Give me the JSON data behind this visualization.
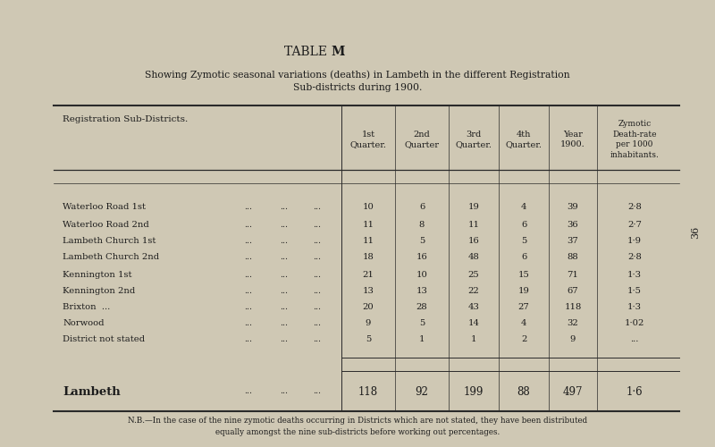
{
  "title_normal": "TABLE ",
  "title_bold": "M",
  "title_after": ".",
  "subtitle": "Showing Zymotic seasonal variations (deaths) in Lambeth in the different Registration\nSub-districts during 1900.",
  "rows": [
    [
      "Waterloo Road 1st",
      "...",
      "...",
      "...",
      "10",
      "6",
      "19",
      "4",
      "39",
      "2·8"
    ],
    [
      "Waterloo Road 2nd",
      "...",
      "...",
      "...",
      "11",
      "8",
      "11",
      "6",
      "36",
      "2·7"
    ],
    [
      "Lambeth Church 1st",
      "...",
      "...",
      "...",
      "11",
      "5",
      "16",
      "5",
      "37",
      "1·9"
    ],
    [
      "Lambeth Church 2nd",
      "...",
      "...",
      "...",
      "18",
      "16",
      "48",
      "6",
      "88",
      "2·8"
    ],
    [
      "Kennington 1st",
      "...",
      "...",
      "...",
      "21",
      "10",
      "25",
      "15",
      "71",
      "1·3"
    ],
    [
      "Kennington 2nd",
      "...",
      "...",
      "...",
      "13",
      "13",
      "22",
      "19",
      "67",
      "1·5"
    ],
    [
      "Brixton  ...",
      "...",
      "...",
      "...",
      "20",
      "28",
      "43",
      "27",
      "118",
      "1·3"
    ],
    [
      "Norwood",
      "...",
      "...",
      "...",
      "9",
      "5",
      "14",
      "4",
      "32",
      "1·02"
    ],
    [
      "District not stated",
      "...",
      "...",
      "...",
      "5",
      "1",
      "1",
      "2",
      "9",
      "..."
    ]
  ],
  "total_row": [
    "Lambeth",
    "...",
    "...",
    "...",
    "118",
    "92",
    "199",
    "88",
    "497",
    "1·6"
  ],
  "footnote": "N.B.—In the case of the nine zymotic deaths occurring in Districts which are not stated, they have been distributed\nequally amongst the nine sub-districts before working out percentages.",
  "bg_color": "#cfc8b4",
  "text_color": "#1c1c1c",
  "page_number": "36",
  "header_cols": [
    "1st\nQuarter.",
    "2nd\nQuarter",
    "3rd\nQuarter.",
    "4th\nQuarter.",
    "Year\n1900.",
    "Zymotic\nDeath-rate\nper 1000\ninhabitants."
  ]
}
